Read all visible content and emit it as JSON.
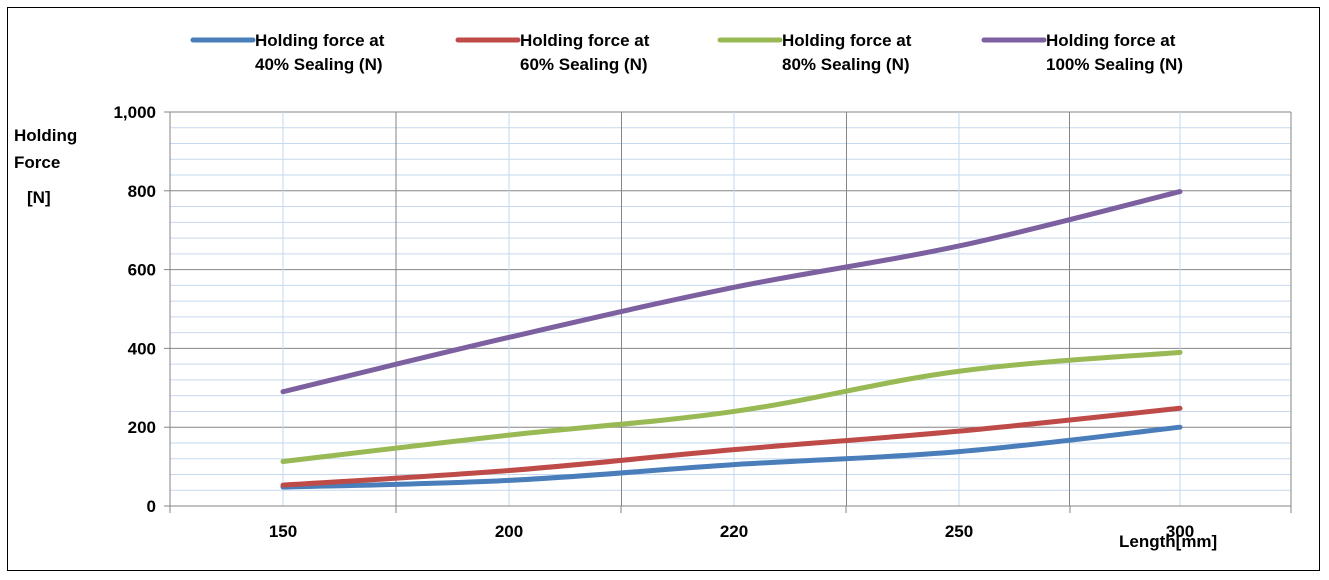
{
  "chart_data": {
    "type": "line",
    "categories": [
      "150",
      "200",
      "220",
      "250",
      "300"
    ],
    "ylabel_lines": [
      "Holding",
      "Force",
      "[N]"
    ],
    "xlabel": "Length[mm]",
    "y_ticks": [
      "0",
      "200",
      "400",
      "600",
      "800",
      "1,000"
    ],
    "ylim": [
      0,
      1000
    ],
    "legend_position": "top",
    "grid": true,
    "series": [
      {
        "name_line1": "Holding force at",
        "name_line2": "40% Sealing (N)",
        "color": "#4a7ebb",
        "values": [
          48,
          65,
          105,
          138,
          200
        ]
      },
      {
        "name_line1": "Holding force at",
        "name_line2": "60% Sealing (N)",
        "color": "#be4b48",
        "values": [
          53,
          90,
          143,
          190,
          248
        ]
      },
      {
        "name_line1": "Holding force at",
        "name_line2": "80% Sealing (N)",
        "color": "#98b954",
        "values": [
          113,
          180,
          240,
          342,
          390
        ]
      },
      {
        "name_line1": "Holding force at",
        "name_line2": "100% Sealing (N)",
        "color": "#7d60a0",
        "values": [
          290,
          428,
          555,
          660,
          798
        ]
      }
    ]
  }
}
